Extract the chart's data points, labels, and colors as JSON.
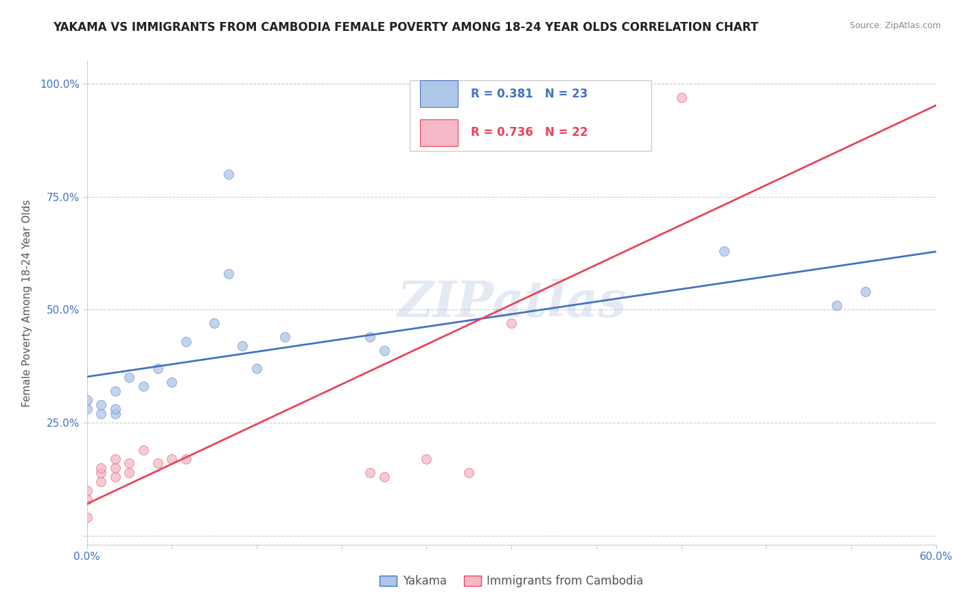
{
  "title": "YAKAMA VS IMMIGRANTS FROM CAMBODIA FEMALE POVERTY AMONG 18-24 YEAR OLDS CORRELATION CHART",
  "source": "Source: ZipAtlas.com",
  "ylabel": "Female Poverty Among 18-24 Year Olds",
  "xlim": [
    0.0,
    0.6
  ],
  "ylim": [
    -0.02,
    1.05
  ],
  "xtick_positions": [
    0.0,
    0.06,
    0.12,
    0.18,
    0.24,
    0.3,
    0.36,
    0.42,
    0.48,
    0.54,
    0.6
  ],
  "xtick_labels": [
    "0.0%",
    "",
    "",
    "",
    "",
    "",
    "",
    "",
    "",
    "",
    "60.0%"
  ],
  "ytick_positions": [
    0.0,
    0.25,
    0.5,
    0.75,
    1.0
  ],
  "ytick_labels": [
    "",
    "25.0%",
    "50.0%",
    "75.0%",
    "100.0%"
  ],
  "background_color": "#ffffff",
  "grid_color": "#cccccc",
  "yakama_x": [
    0.0,
    0.0,
    0.01,
    0.01,
    0.02,
    0.02,
    0.02,
    0.03,
    0.04,
    0.05,
    0.06,
    0.07,
    0.09,
    0.1,
    0.11,
    0.12,
    0.14,
    0.2,
    0.21,
    0.45,
    0.53,
    0.55,
    0.1
  ],
  "yakama_y": [
    0.28,
    0.3,
    0.27,
    0.29,
    0.27,
    0.28,
    0.32,
    0.35,
    0.33,
    0.37,
    0.34,
    0.43,
    0.47,
    0.58,
    0.42,
    0.37,
    0.44,
    0.44,
    0.41,
    0.63,
    0.51,
    0.54,
    0.8
  ],
  "yakama_R": 0.381,
  "yakama_N": 23,
  "yakama_color": "#aec6e8",
  "yakama_line_color": "#4472c4",
  "yakama_label": "Yakama",
  "cambodia_x": [
    0.0,
    0.0,
    0.0,
    0.01,
    0.01,
    0.01,
    0.02,
    0.02,
    0.02,
    0.03,
    0.03,
    0.04,
    0.05,
    0.06,
    0.07,
    0.2,
    0.21,
    0.24,
    0.27,
    0.3,
    0.38,
    0.42
  ],
  "cambodia_y": [
    0.04,
    0.08,
    0.1,
    0.12,
    0.14,
    0.15,
    0.13,
    0.15,
    0.17,
    0.14,
    0.16,
    0.19,
    0.16,
    0.17,
    0.17,
    0.14,
    0.13,
    0.17,
    0.14,
    0.47,
    0.97,
    0.97
  ],
  "cambodia_R": 0.736,
  "cambodia_N": 22,
  "cambodia_color": "#f4b8c8",
  "cambodia_line_color": "#e8435a",
  "cambodia_label": "Immigrants from Cambodia",
  "title_fontsize": 12,
  "axis_label_fontsize": 11,
  "tick_fontsize": 11,
  "marker_size": 100,
  "marker_alpha": 0.75,
  "line_width": 2.0
}
